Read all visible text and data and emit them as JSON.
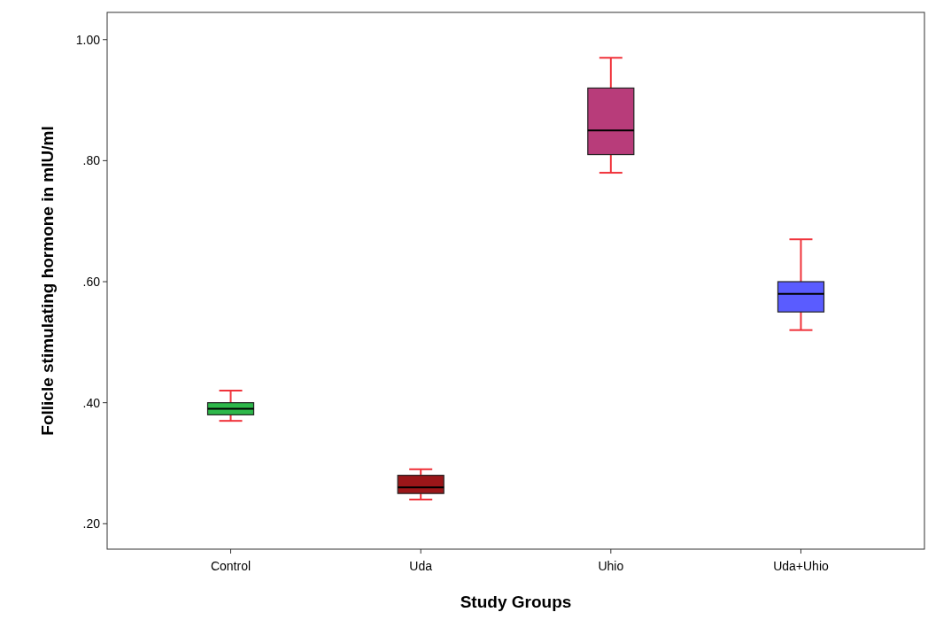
{
  "chart_data": {
    "type": "box",
    "xlabel": "Study Groups",
    "ylabel": "Follicle stimulating hormone in mIU/ml",
    "categories": [
      "Control",
      "Uda",
      "Uhio",
      "Uda+Uhio"
    ],
    "colors": [
      "#2db84a",
      "#9b1619",
      "#b83c7a",
      "#5a5cff"
    ],
    "boxes": [
      {
        "low": 0.37,
        "q1": 0.38,
        "median": 0.39,
        "q3": 0.4,
        "high": 0.42
      },
      {
        "low": 0.24,
        "q1": 0.25,
        "median": 0.26,
        "q3": 0.28,
        "high": 0.29
      },
      {
        "low": 0.78,
        "q1": 0.81,
        "median": 0.85,
        "q3": 0.92,
        "high": 0.97
      },
      {
        "low": 0.52,
        "q1": 0.55,
        "median": 0.58,
        "q3": 0.6,
        "high": 0.67
      }
    ],
    "ylim": [
      0.158,
      1.045
    ],
    "yticks": [
      {
        "value": 0.2,
        "label": ".20"
      },
      {
        "value": 0.4,
        "label": ".40"
      },
      {
        "value": 0.6,
        "label": ".60"
      },
      {
        "value": 0.8,
        "label": ".80"
      },
      {
        "value": 1.0,
        "label": "1.00"
      }
    ],
    "grid": false
  }
}
